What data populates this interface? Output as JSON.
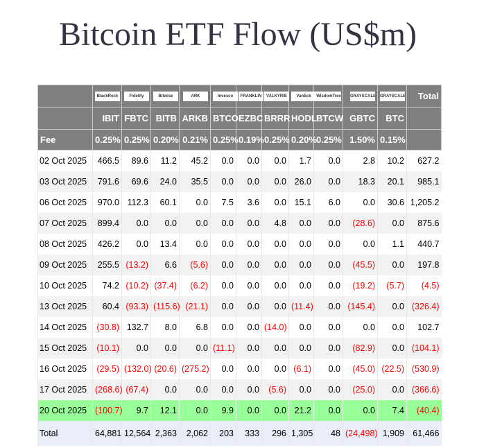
{
  "title": "Bitcoin ETF Flow (US$m)",
  "logos": [
    "BlackRock",
    "Fidelity",
    "Bitwise",
    "ARK INVEST",
    "Invesco",
    "FRANKLIN TEMPLETON",
    "VALKYRIE",
    "VanEck",
    "WisdomTree",
    "GRAYSCALE",
    "GRAYSCALE"
  ],
  "total_header": "Total",
  "tickers": [
    "IBIT",
    "FBTC",
    "BITB",
    "ARKB",
    "BTCO",
    "EZBC",
    "BRRR",
    "HODL",
    "BTCW",
    "GBTC",
    "BTC"
  ],
  "fee_label": "Fee",
  "fees": [
    "0.25%",
    "0.25%",
    "0.20%",
    "0.21%",
    "0.25%",
    "0.19%",
    "0.25%",
    "0.20%",
    "0.25%",
    "1.50%",
    "0.15%"
  ],
  "colors": {
    "header": "#808080",
    "negative": "#ff0000",
    "highlight": "#99ff99",
    "total_row": "#eaeef8"
  },
  "rows": [
    {
      "date": "02 Oct 2025",
      "values": [
        "466.5",
        "89.6",
        "11.2",
        "45.2",
        "0.0",
        "0.0",
        "0.0",
        "1.7",
        "0.0",
        "2.8",
        "10.2",
        "627.2"
      ]
    },
    {
      "date": "03 Oct 2025",
      "values": [
        "791.6",
        "69.6",
        "24.0",
        "35.5",
        "0.0",
        "0.0",
        "0.0",
        "26.0",
        "0.0",
        "18.3",
        "20.1",
        "985.1"
      ]
    },
    {
      "date": "06 Oct 2025",
      "values": [
        "970.0",
        "112.3",
        "60.1",
        "0.0",
        "7.5",
        "3.6",
        "0.0",
        "15.1",
        "6.0",
        "0.0",
        "30.6",
        "1,205.2"
      ]
    },
    {
      "date": "07 Oct 2025",
      "values": [
        "899.4",
        "0.0",
        "0.0",
        "0.0",
        "0.0",
        "0.0",
        "4.8",
        "0.0",
        "0.0",
        "(28.6)",
        "0.0",
        "875.6"
      ]
    },
    {
      "date": "08 Oct 2025",
      "values": [
        "426.2",
        "0.0",
        "13.4",
        "0.0",
        "0.0",
        "0.0",
        "0.0",
        "0.0",
        "0.0",
        "0.0",
        "1.1",
        "440.7"
      ]
    },
    {
      "date": "09 Oct 2025",
      "values": [
        "255.5",
        "(13.2)",
        "6.6",
        "(5.6)",
        "0.0",
        "0.0",
        "0.0",
        "0.0",
        "0.0",
        "(45.5)",
        "0.0",
        "197.8"
      ]
    },
    {
      "date": "10 Oct 2025",
      "values": [
        "74.2",
        "(10.2)",
        "(37.4)",
        "(6.2)",
        "0.0",
        "0.0",
        "0.0",
        "0.0",
        "0.0",
        "(19.2)",
        "(5.7)",
        "(4.5)"
      ]
    },
    {
      "date": "13 Oct 2025",
      "values": [
        "60.4",
        "(93.3)",
        "(115.6)",
        "(21.1)",
        "0.0",
        "0.0",
        "0.0",
        "(11.4)",
        "0.0",
        "(145.4)",
        "0.0",
        "(326.4)"
      ]
    },
    {
      "date": "14 Oct 2025",
      "values": [
        "(30.8)",
        "132.7",
        "8.0",
        "6.8",
        "0.0",
        "0.0",
        "(14.0)",
        "0.0",
        "0.0",
        "0.0",
        "0.0",
        "102.7"
      ]
    },
    {
      "date": "15 Oct 2025",
      "values": [
        "(10.1)",
        "0.0",
        "0.0",
        "0.0",
        "(11.1)",
        "0.0",
        "0.0",
        "0.0",
        "0.0",
        "(82.9)",
        "0.0",
        "(104.1)"
      ]
    },
    {
      "date": "16 Oct 2025",
      "values": [
        "(29.5)",
        "(132.0)",
        "(20.6)",
        "(275.2)",
        "0.0",
        "0.0",
        "0.0",
        "(6.1)",
        "0.0",
        "(45.0)",
        "(22.5)",
        "(530.9)"
      ]
    },
    {
      "date": "17 Oct 2025",
      "values": [
        "(268.6)",
        "(67.4)",
        "0.0",
        "0.0",
        "0.0",
        "0.0",
        "(5.6)",
        "0.0",
        "0.0",
        "(25.0)",
        "0.0",
        "(366.6)"
      ]
    },
    {
      "date": "20 Oct 2025",
      "highlight": true,
      "values": [
        "(100.7)",
        "9.7",
        "12.1",
        "0.0",
        "9.9",
        "0.0",
        "0.0",
        "21.2",
        "0.0",
        "0.0",
        "7.4",
        "(40.4)"
      ]
    }
  ],
  "total": {
    "label": "Total",
    "values": [
      "64,881",
      "12,564",
      "2,363",
      "2,062",
      "203",
      "333",
      "296",
      "1,305",
      "48",
      "(24,498)",
      "1,909",
      "61,466"
    ]
  }
}
